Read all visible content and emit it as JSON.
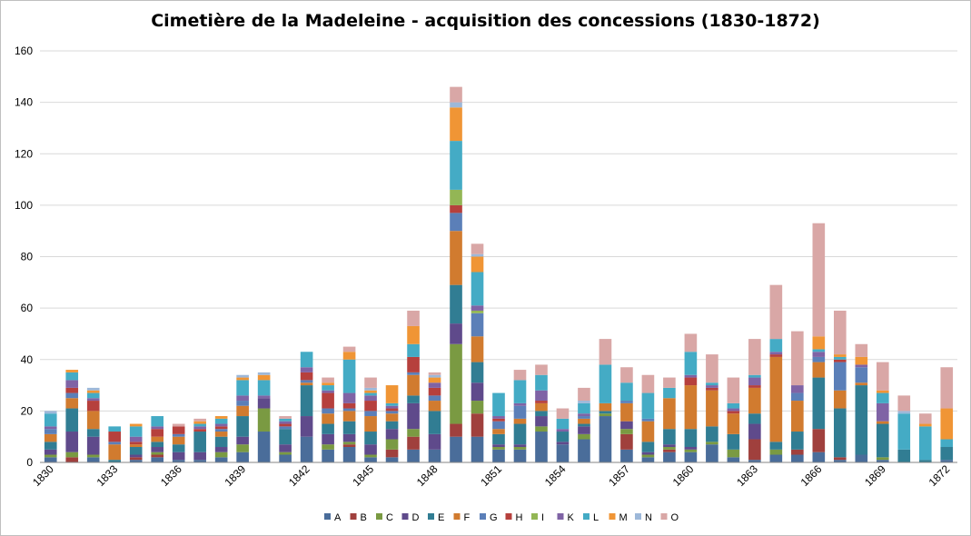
{
  "chart_data": {
    "type": "bar",
    "stacked": true,
    "title": "Cimetière de la Madeleine - acquisition des concessions (1830-1872)",
    "xlabel": "",
    "ylabel": "",
    "ylim": [
      0,
      160
    ],
    "yticks": [
      0,
      20,
      40,
      60,
      80,
      100,
      120,
      140,
      160
    ],
    "grid": true,
    "legend_position": "bottom",
    "categories": [
      "1830",
      "1831",
      "1832",
      "1833",
      "1834",
      "1835",
      "1836",
      "1837",
      "1838",
      "1839",
      "1840",
      "1841",
      "1842",
      "1843",
      "1844",
      "1845",
      "1846",
      "1847",
      "1848",
      "1849",
      "1850",
      "1851",
      "1852",
      "1853",
      "1854",
      "1855",
      "1856",
      "1857",
      "1858",
      "1859",
      "1860",
      "1861",
      "1862",
      "1863",
      "1864",
      "1865",
      "1866",
      "1867",
      "1868",
      "1869",
      "1870",
      "1871",
      "1872"
    ],
    "x_tick_labels": [
      "1830",
      "",
      "",
      "1833",
      "",
      "",
      "1836",
      "",
      "",
      "1839",
      "",
      "",
      "1842",
      "",
      "",
      "1845",
      "",
      "",
      "1848",
      "",
      "",
      "1851",
      "",
      "",
      "1854",
      "",
      "",
      "1857",
      "",
      "",
      "1860",
      "",
      "",
      "1863",
      "",
      "",
      "1866",
      "",
      "",
      "1869",
      "",
      "",
      "1872"
    ],
    "series": [
      {
        "name": "A",
        "color": "#4a6d9a",
        "values": [
          2,
          0,
          2,
          0,
          1,
          2,
          1,
          1,
          2,
          4,
          12,
          3,
          10,
          5,
          6,
          2,
          2,
          5,
          5,
          10,
          10,
          5,
          5,
          12,
          7,
          9,
          18,
          5,
          2,
          4,
          4,
          7,
          2,
          1,
          3,
          3,
          4,
          1,
          3,
          1,
          0,
          0,
          1
        ]
      },
      {
        "name": "B",
        "color": "#a0403d",
        "values": [
          0,
          2,
          0,
          0,
          1,
          1,
          0,
          0,
          0,
          0,
          0,
          0,
          0,
          0,
          1,
          0,
          3,
          5,
          0,
          5,
          9,
          0,
          0,
          0,
          0,
          0,
          0,
          6,
          0,
          1,
          0,
          0,
          0,
          8,
          0,
          2,
          9,
          1,
          0,
          0,
          0,
          0,
          0
        ]
      },
      {
        "name": "C",
        "color": "#7a9a42",
        "values": [
          1,
          2,
          1,
          0,
          0,
          1,
          0,
          0,
          2,
          3,
          9,
          1,
          0,
          2,
          1,
          1,
          4,
          3,
          0,
          31,
          5,
          1,
          1,
          2,
          0,
          2,
          1,
          2,
          1,
          1,
          1,
          1,
          3,
          0,
          2,
          0,
          0,
          0,
          0,
          1,
          0,
          0,
          0
        ]
      },
      {
        "name": "D",
        "color": "#5f4a8b",
        "values": [
          2,
          8,
          7,
          0,
          1,
          2,
          3,
          3,
          2,
          3,
          4,
          3,
          8,
          4,
          3,
          4,
          4,
          10,
          6,
          8,
          7,
          1,
          1,
          4,
          1,
          3,
          0,
          3,
          1,
          1,
          1,
          0,
          0,
          6,
          0,
          0,
          0,
          0,
          0,
          0,
          0,
          0,
          0
        ]
      },
      {
        "name": "E",
        "color": "#317d93",
        "values": [
          3,
          9,
          3,
          1,
          3,
          2,
          3,
          8,
          4,
          8,
          0,
          6,
          12,
          4,
          5,
          5,
          3,
          3,
          9,
          15,
          8,
          4,
          8,
          2,
          4,
          1,
          1,
          0,
          4,
          6,
          7,
          6,
          6,
          4,
          3,
          7,
          20,
          19,
          27,
          13,
          5,
          1,
          5
        ]
      },
      {
        "name": "F",
        "color": "#d17b2f",
        "values": [
          3,
          4,
          7,
          6,
          1,
          2,
          3,
          0,
          2,
          4,
          0,
          0,
          1,
          4,
          4,
          6,
          3,
          8,
          4,
          21,
          10,
          2,
          2,
          3,
          0,
          2,
          3,
          7,
          8,
          12,
          17,
          14,
          8,
          10,
          33,
          12,
          6,
          7,
          1,
          1,
          0,
          0,
          0
        ]
      },
      {
        "name": "G",
        "color": "#5b7fb8",
        "values": [
          2,
          2,
          0,
          1,
          0,
          0,
          1,
          0,
          1,
          2,
          0,
          1,
          1,
          2,
          1,
          2,
          1,
          1,
          2,
          7,
          9,
          3,
          5,
          0,
          0,
          1,
          0,
          1,
          1,
          0,
          0,
          0,
          0,
          0,
          0,
          3,
          2,
          11,
          6,
          0,
          0,
          0,
          0
        ]
      },
      {
        "name": "H",
        "color": "#b6403d",
        "values": [
          0,
          2,
          4,
          4,
          1,
          3,
          3,
          1,
          1,
          0,
          0,
          1,
          3,
          6,
          2,
          4,
          1,
          6,
          3,
          3,
          0,
          1,
          0,
          1,
          0,
          0,
          0,
          0,
          0,
          0,
          3,
          1,
          1,
          1,
          1,
          0,
          0,
          1,
          0,
          0,
          0,
          0,
          0
        ]
      },
      {
        "name": "I",
        "color": "#93b655",
        "values": [
          0,
          0,
          0,
          0,
          0,
          0,
          0,
          0,
          0,
          0,
          0,
          0,
          0,
          0,
          0,
          0,
          0,
          0,
          0,
          6,
          1,
          0,
          0,
          0,
          0,
          0,
          0,
          0,
          0,
          0,
          0,
          0,
          0,
          0,
          0,
          0,
          0,
          0,
          0,
          0,
          0,
          0,
          0
        ]
      },
      {
        "name": "K",
        "color": "#7f63a5",
        "values": [
          1,
          3,
          1,
          0,
          2,
          1,
          0,
          1,
          1,
          2,
          1,
          1,
          2,
          1,
          4,
          2,
          1,
          0,
          2,
          0,
          2,
          1,
          1,
          4,
          1,
          1,
          0,
          0,
          0,
          0,
          1,
          1,
          1,
          3,
          1,
          3,
          2,
          0,
          1,
          7,
          0,
          0,
          0
        ]
      },
      {
        "name": "L",
        "color": "#44abc5",
        "values": [
          5,
          3,
          2,
          2,
          4,
          4,
          0,
          1,
          2,
          6,
          6,
          1,
          6,
          2,
          13,
          1,
          1,
          5,
          0,
          19,
          13,
          9,
          9,
          6,
          4,
          4,
          15,
          7,
          10,
          4,
          9,
          1,
          2,
          1,
          5,
          0,
          1,
          1,
          0,
          4,
          14,
          13,
          3
        ]
      },
      {
        "name": "M",
        "color": "#f09535",
        "values": [
          0,
          1,
          1,
          0,
          1,
          0,
          0,
          1,
          1,
          1,
          2,
          0,
          0,
          1,
          3,
          1,
          7,
          7,
          2,
          13,
          6,
          0,
          0,
          0,
          0,
          0,
          0,
          0,
          0,
          0,
          0,
          0,
          0,
          0,
          0,
          0,
          5,
          1,
          3,
          1,
          0,
          1,
          12
        ]
      },
      {
        "name": "N",
        "color": "#9db8d9",
        "values": [
          1,
          0,
          1,
          0,
          0,
          0,
          0,
          0,
          0,
          1,
          1,
          0,
          0,
          0,
          0,
          1,
          0,
          0,
          1,
          2,
          1,
          0,
          0,
          0,
          0,
          1,
          0,
          0,
          0,
          0,
          0,
          0,
          0,
          0,
          0,
          0,
          0,
          0,
          0,
          0,
          1,
          0,
          0
        ]
      },
      {
        "name": "O",
        "color": "#d9a7a6",
        "values": [
          0,
          0,
          0,
          0,
          0,
          0,
          1,
          1,
          0,
          0,
          0,
          1,
          0,
          2,
          2,
          4,
          0,
          6,
          1,
          6,
          4,
          0,
          4,
          4,
          4,
          5,
          10,
          6,
          7,
          4,
          7,
          11,
          10,
          14,
          21,
          21,
          44,
          17,
          5,
          11,
          6,
          4,
          16
        ]
      }
    ]
  }
}
